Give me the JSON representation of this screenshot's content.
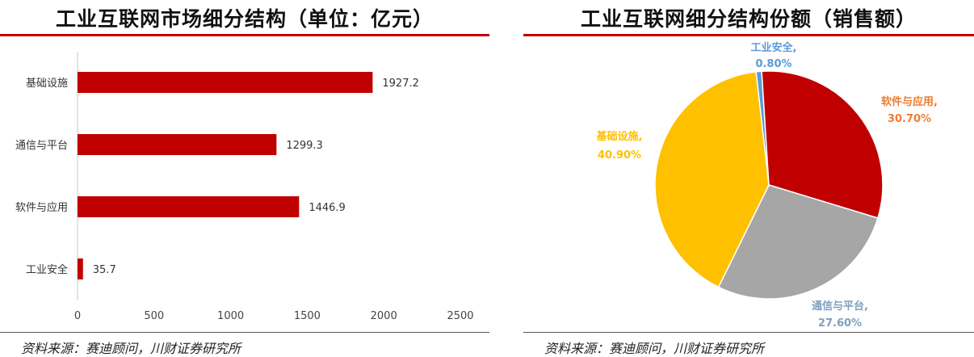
{
  "left": {
    "title": "工业互联网市场细分结构（单位：亿元）",
    "source": "资料来源：赛迪顾问，川财证券研究所"
  },
  "right": {
    "title": "工业互联网细分结构份额（销售额）",
    "source": "资料来源：赛迪顾问，川财证券研究所"
  },
  "colors": {
    "bar": "#c00000",
    "rule": "#c00000",
    "software": "#c00000",
    "comms": "#a6a6a6",
    "infra": "#ffc000",
    "security": "#5b9bd5",
    "label_software": "#ed7d31",
    "label_comms": "#7f9fbf",
    "label_infra": "#ffc000",
    "label_security": "#5b9bd5"
  },
  "chart_data": [
    {
      "type": "bar",
      "orientation": "horizontal",
      "categories": [
        "基础设施",
        "通信与平台",
        "软件与应用",
        "工业安全"
      ],
      "values": [
        1927.2,
        1299.3,
        1446.9,
        35.7
      ],
      "value_labels": [
        "1927.2",
        "1299.3",
        "1446.9",
        "35.7"
      ],
      "xlim": [
        0,
        2500
      ],
      "xticks": [
        "0",
        "500",
        "1000",
        "1500",
        "2000",
        "2500"
      ],
      "grid": false
    },
    {
      "type": "pie",
      "slices": [
        {
          "key": "security",
          "label": "工业安全,",
          "pct_label": "0.80%",
          "value": 0.8
        },
        {
          "key": "software",
          "label": "软件与应用,",
          "pct_label": "30.70%",
          "value": 30.7
        },
        {
          "key": "comms",
          "label": "通信与平台,",
          "pct_label": "27.60%",
          "value": 27.6
        },
        {
          "key": "infra",
          "label": "基础设施,",
          "pct_label": "40.90%",
          "value": 40.9
        }
      ]
    }
  ]
}
